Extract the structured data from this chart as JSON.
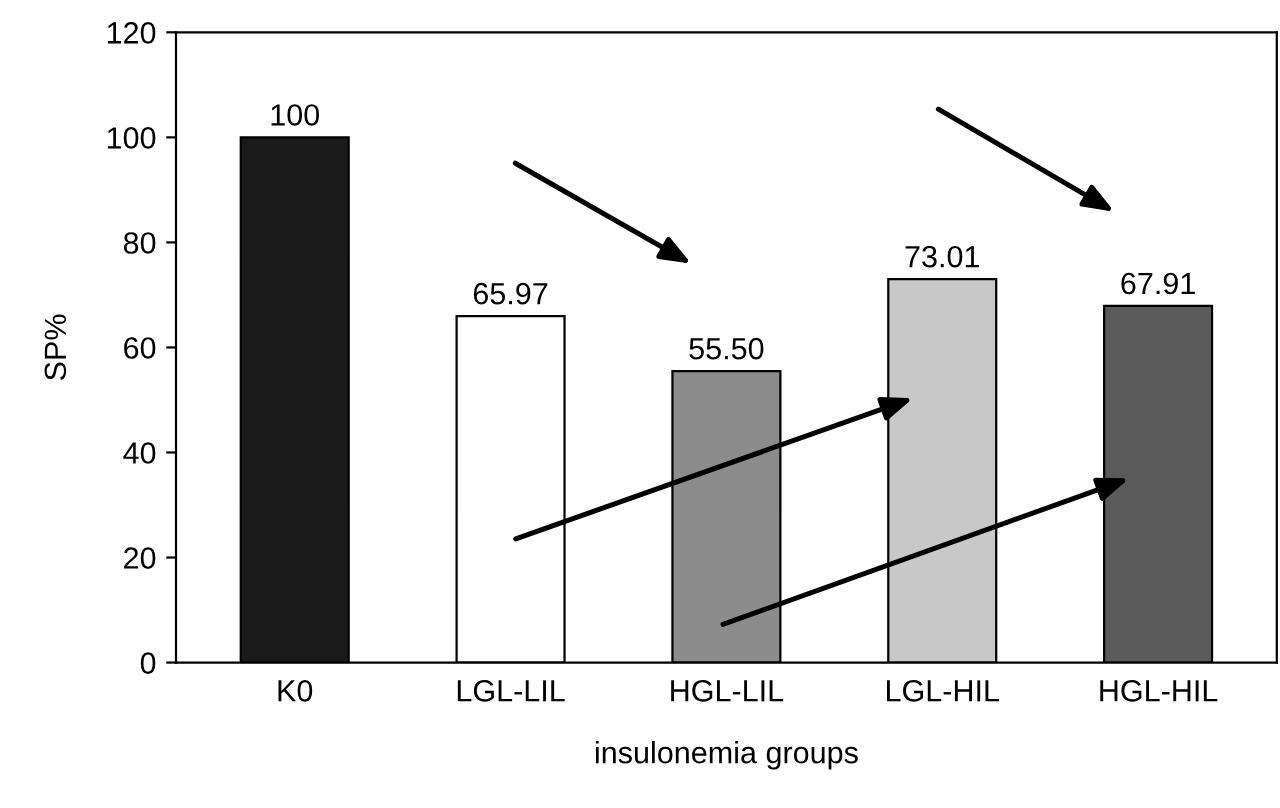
{
  "chart_data": {
    "type": "bar",
    "xlabel": "insulonemia groups",
    "ylabel": "SP%",
    "categories": [
      "K0",
      "LGL-LIL",
      "HGL-LIL",
      "LGL-HIL",
      "HGL-HIL"
    ],
    "values": [
      100,
      65.97,
      55.5,
      73.01,
      67.91
    ],
    "value_labels": [
      "100",
      "65.97",
      "55.50",
      "73.01",
      "67.91"
    ],
    "colors": [
      "#1a1a1a",
      "#ffffff",
      "#8c8c8c",
      "#c8c8c8",
      "#5a5a5a"
    ],
    "ylim": [
      0,
      120
    ],
    "yticks": [
      0,
      20,
      40,
      60,
      80,
      100,
      120
    ],
    "grid": false
  }
}
